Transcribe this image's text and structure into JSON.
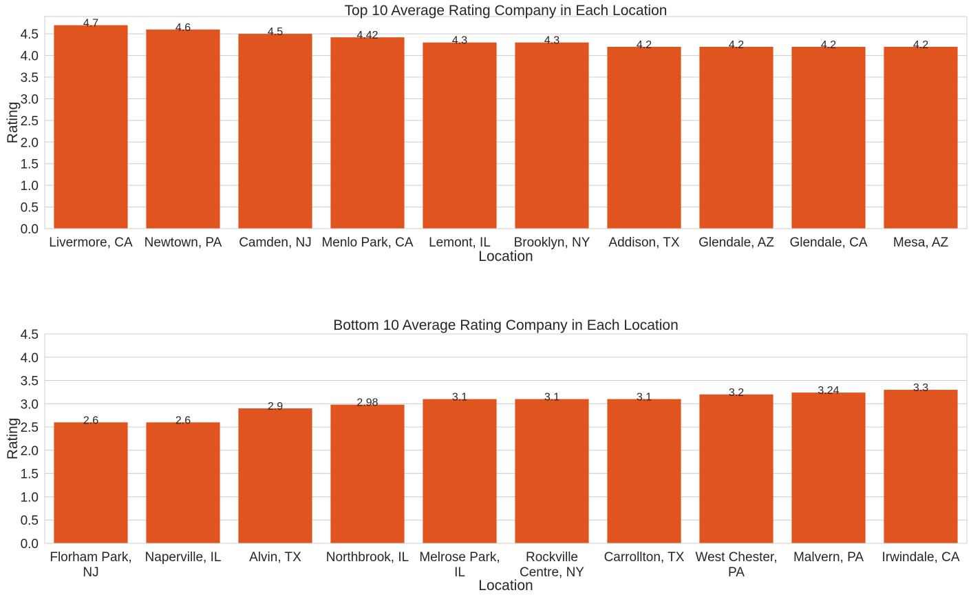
{
  "colors": {
    "bar": "#e05420",
    "grid": "#cccccc",
    "frame": "#cccccc",
    "text": "#262626",
    "background": "#ffffff"
  },
  "chart_data": [
    {
      "type": "bar",
      "title": "Top 10 Average Rating Company in Each Location",
      "xlabel": "Location",
      "ylabel": "Rating",
      "ylim": [
        0,
        4.9
      ],
      "yticks": [
        "0.0",
        "0.5",
        "1.0",
        "1.5",
        "2.0",
        "2.5",
        "3.0",
        "3.5",
        "4.0",
        "4.5"
      ],
      "grid": true,
      "categories": [
        [
          "Livermore, CA"
        ],
        [
          "Newtown, PA"
        ],
        [
          "Camden, NJ"
        ],
        [
          "Menlo Park, CA"
        ],
        [
          "Lemont, IL"
        ],
        [
          "Brooklyn, NY"
        ],
        [
          "Addison, TX"
        ],
        [
          "Glendale, AZ"
        ],
        [
          "Glendale, CA"
        ],
        [
          "Mesa, AZ"
        ]
      ],
      "values": [
        4.7,
        4.6,
        4.5,
        4.42,
        4.3,
        4.3,
        4.2,
        4.2,
        4.2,
        4.2
      ],
      "value_labels": [
        "4.7",
        "4.6",
        "4.5",
        "4.42",
        "4.3",
        "4.3",
        "4.2",
        "4.2",
        "4.2",
        "4.2"
      ]
    },
    {
      "type": "bar",
      "title": "Bottom 10 Average Rating Company in Each Location",
      "xlabel": "Location",
      "ylabel": "Rating",
      "ylim": [
        0,
        4.5
      ],
      "yticks": [
        "0.0",
        "0.5",
        "1.0",
        "1.5",
        "2.0",
        "2.5",
        "3.0",
        "3.5",
        "4.0",
        "4.5"
      ],
      "grid": true,
      "categories": [
        [
          "Florham Park,",
          "NJ"
        ],
        [
          "Naperville, IL"
        ],
        [
          "Alvin, TX"
        ],
        [
          "Northbrook, IL"
        ],
        [
          "Melrose Park,",
          "IL"
        ],
        [
          "Rockville",
          "Centre, NY"
        ],
        [
          "Carrollton, TX"
        ],
        [
          "West Chester,",
          "PA"
        ],
        [
          "Malvern, PA"
        ],
        [
          "Irwindale, CA"
        ]
      ],
      "values": [
        2.6,
        2.6,
        2.9,
        2.98,
        3.1,
        3.1,
        3.1,
        3.2,
        3.24,
        3.3
      ],
      "value_labels": [
        "2.6",
        "2.6",
        "2.9",
        "2.98",
        "3.1",
        "3.1",
        "3.1",
        "3.2",
        "3.24",
        "3.3"
      ]
    }
  ]
}
